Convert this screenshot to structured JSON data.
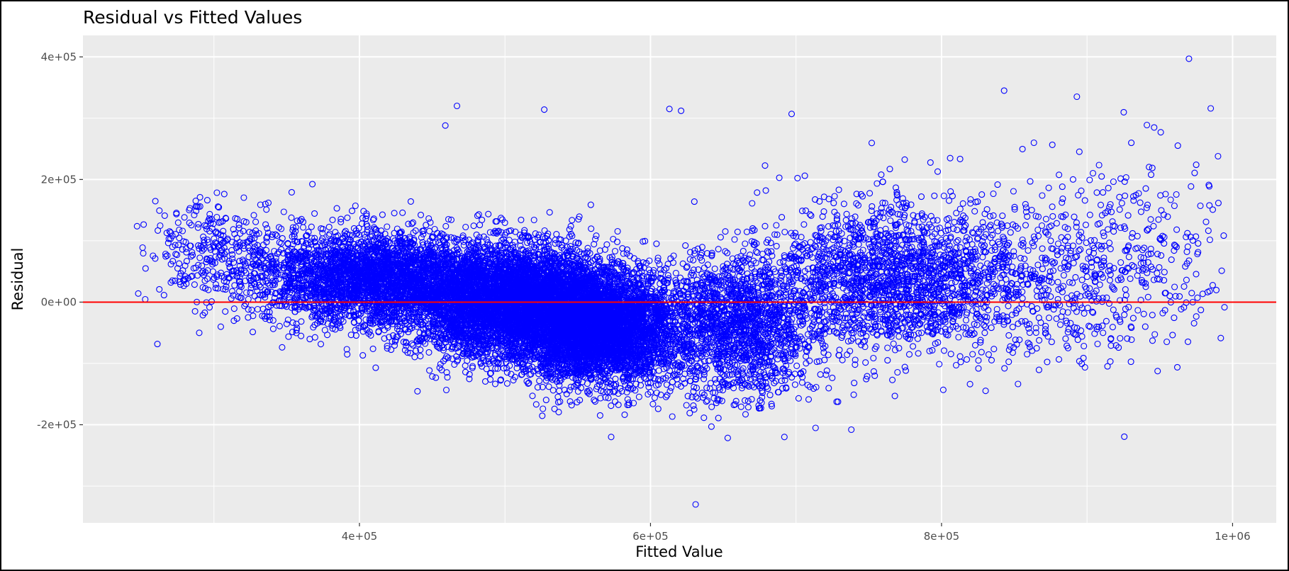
{
  "chart_data": {
    "type": "scatter",
    "title": "Residual vs Fitted Values",
    "xlabel": "Fitted Value",
    "ylabel": "Residual",
    "xlim": [
      210000,
      1030000
    ],
    "ylim": [
      -360000,
      435000
    ],
    "x_ticks": [
      {
        "value": 400000,
        "label": "4e+05"
      },
      {
        "value": 600000,
        "label": "6e+05"
      },
      {
        "value": 800000,
        "label": "8e+05"
      },
      {
        "value": 1000000,
        "label": "1e+06"
      }
    ],
    "x_minor_ticks": [
      300000,
      500000,
      700000,
      900000
    ],
    "y_ticks": [
      {
        "value": 400000,
        "label": "4e+05"
      },
      {
        "value": 200000,
        "label": "2e+05"
      },
      {
        "value": 0,
        "label": "0e+00"
      },
      {
        "value": -200000,
        "label": "-2e+05"
      }
    ],
    "y_minor_ticks": [
      300000,
      100000,
      -100000,
      -300000
    ],
    "grid": true,
    "reference_line": {
      "y": 0,
      "color": "#ff0000"
    },
    "point_color": "#0000ff",
    "marker": "hollow-circle",
    "panel_color": "#ebebeb",
    "approx_point_count": 20000,
    "series": [
      {
        "notable_points": [
          {
            "x": 248000,
            "y": 14000
          },
          {
            "x": 253000,
            "y": 55000
          },
          {
            "x": 467000,
            "y": 320000
          },
          {
            "x": 527000,
            "y": 314000
          },
          {
            "x": 459000,
            "y": 288000
          },
          {
            "x": 697000,
            "y": 307000
          },
          {
            "x": 613000,
            "y": 315000
          },
          {
            "x": 621000,
            "y": 312000
          },
          {
            "x": 843000,
            "y": 345000
          },
          {
            "x": 893000,
            "y": 335000
          },
          {
            "x": 970000,
            "y": 397000
          },
          {
            "x": 985000,
            "y": 316000
          },
          {
            "x": 631000,
            "y": -330000
          },
          {
            "x": 573000,
            "y": -220000
          },
          {
            "x": 738000,
            "y": -208000
          },
          {
            "x": 692000,
            "y": -220000
          },
          {
            "x": 990000,
            "y": 238000
          },
          {
            "x": 975000,
            "y": 224000
          },
          {
            "x": 952000,
            "y": -18000
          },
          {
            "x": 940000,
            "y": -40000
          }
        ]
      }
    ]
  }
}
